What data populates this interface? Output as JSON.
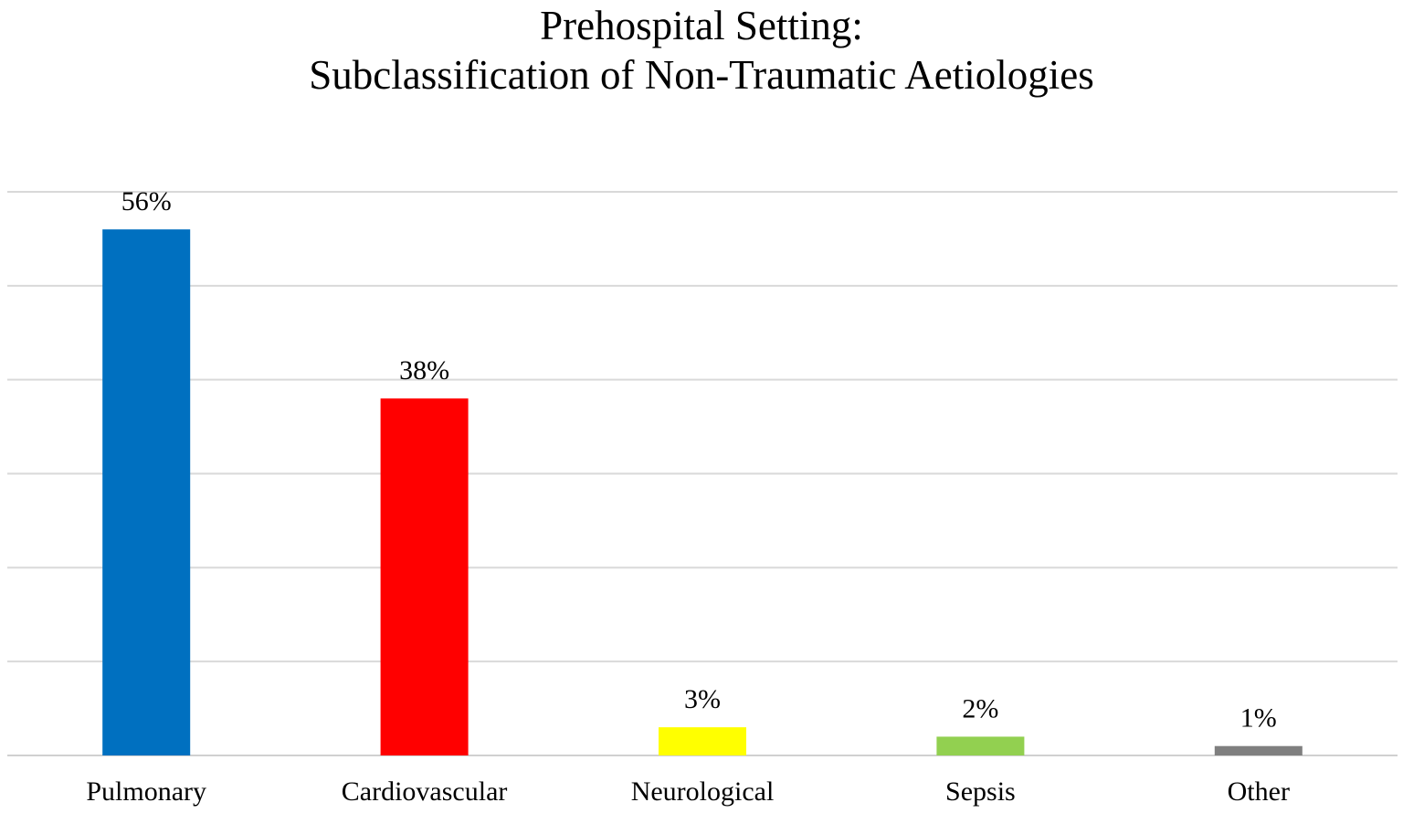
{
  "chart_data": {
    "type": "bar",
    "title_line1": "Prehospital Setting:",
    "title_line2": "Subclassification of Non-Traumatic Aetiologies",
    "xlabel": "",
    "ylabel": "",
    "ylim": [
      0,
      60
    ],
    "grid": true,
    "categories": [
      "Pulmonary",
      "Cardiovascular",
      "Neurological",
      "Sepsis",
      "Other"
    ],
    "values": [
      56,
      38,
      3,
      2,
      1
    ],
    "data_labels": [
      "56%",
      "38%",
      "3%",
      "2%",
      "1%"
    ],
    "colors": [
      "#0070c0",
      "#ff0000",
      "#ffff00",
      "#92d050",
      "#7f7f7f"
    ]
  }
}
